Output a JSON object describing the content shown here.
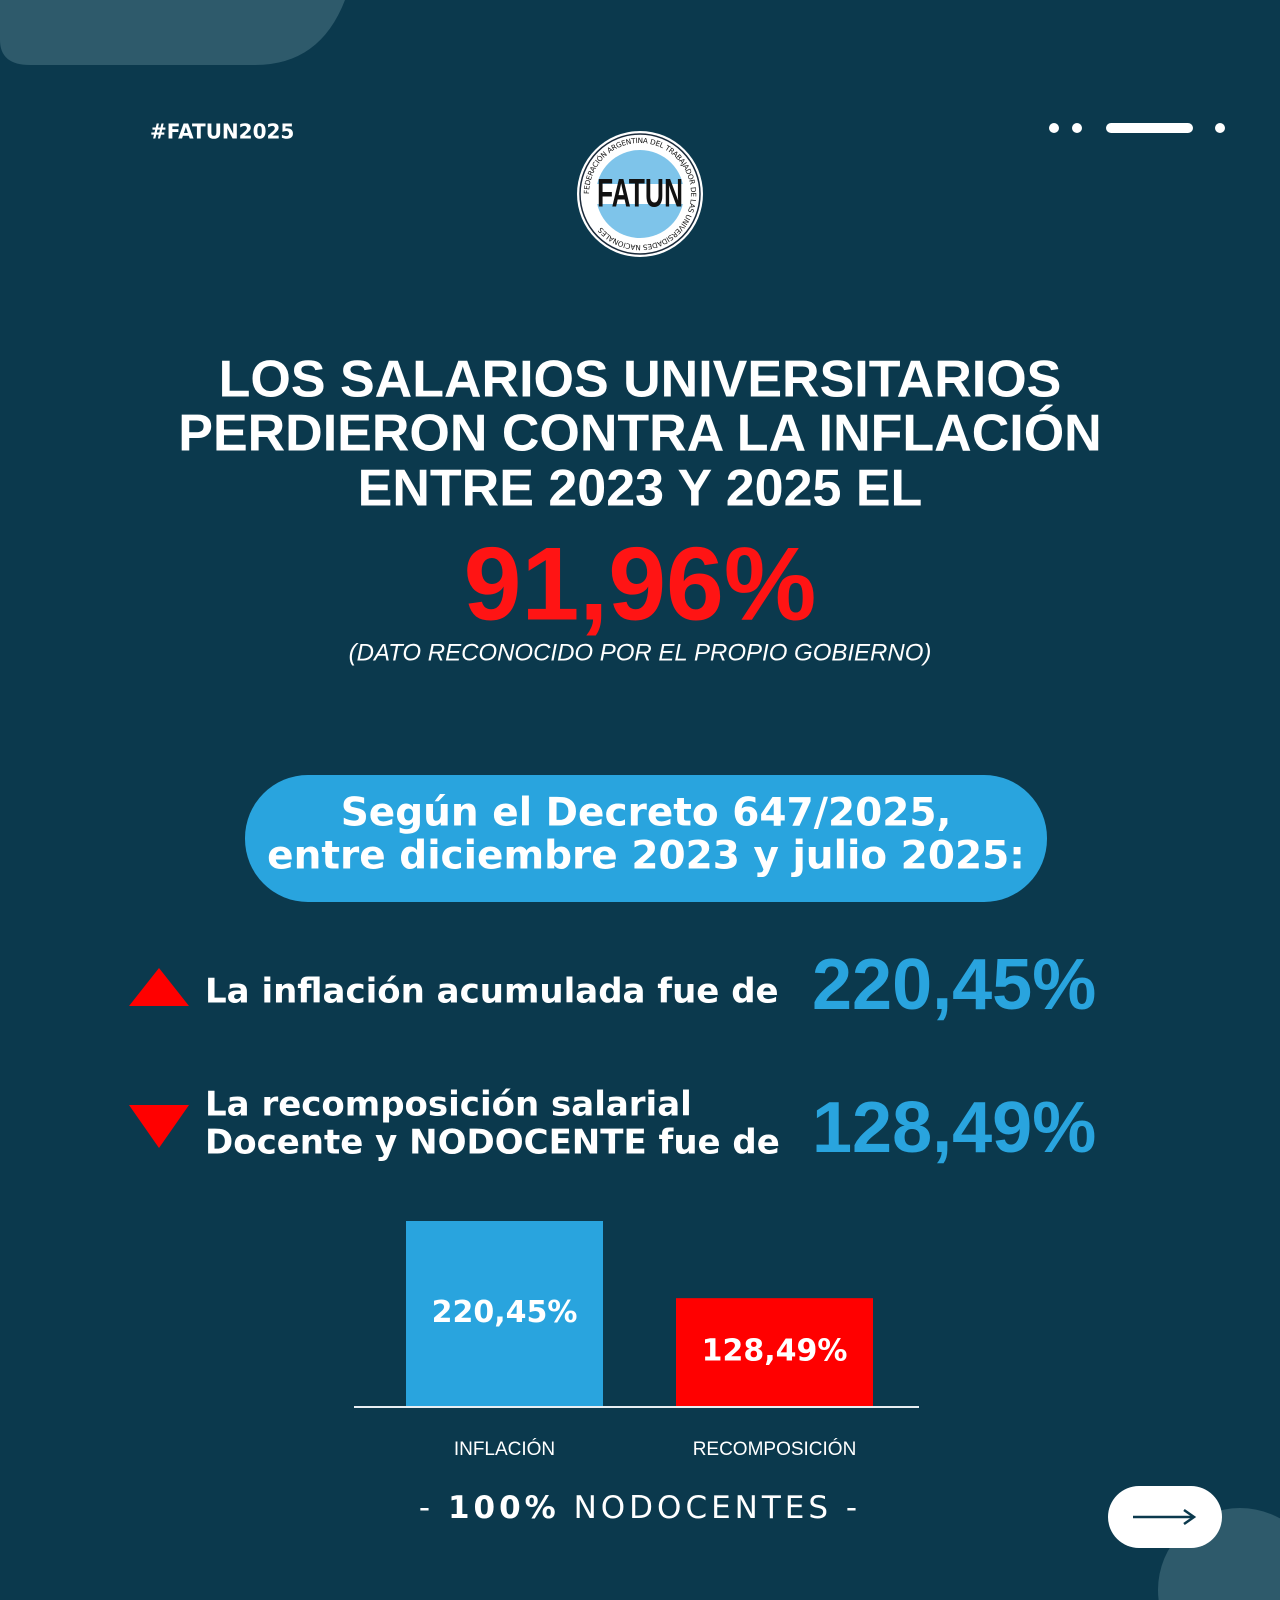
{
  "header": {
    "hashtag": "#FATUN2025"
  },
  "logo": {
    "name": "FATUN",
    "ring_text": "FEDERACIÓN ARGENTINA DEL TRABAJADOR DE LAS UNIVERSIDADES NACIONALES"
  },
  "headline": {
    "lines": [
      "LOS SALARIOS UNIVERSITARIOS",
      "PERDIERON CONTRA LA INFLACIÓN",
      "ENTRE 2023 Y 2025 EL"
    ],
    "figure": "91,96%",
    "note": "(DATO RECONOCIDO POR EL PROPIO GOBIERNO)"
  },
  "banner": {
    "lines": [
      "Según el Decreto 647/2025,",
      "entre diciembre 2023 y julio 2025:"
    ]
  },
  "stats": [
    {
      "lines": [
        "La inflación acumulada fue de"
      ]
    },
    {
      "lines": [
        "La recomposición salarial",
        "Docente y NODOCENTE fue de"
      ]
    }
  ],
  "chart_data": {
    "type": "bar",
    "categories": [
      "INFLACIÓN",
      "RECOMPOSICIÓN"
    ],
    "values": [
      220.45,
      128.49
    ],
    "value_labels": [
      "220,45%",
      "128,49%"
    ],
    "colors": [
      "#29a4de",
      "#ff0000"
    ]
  },
  "footer": {
    "prefix": "-",
    "emphasis": "100%",
    "text": "NODOCENTES",
    "suffix": "-"
  }
}
